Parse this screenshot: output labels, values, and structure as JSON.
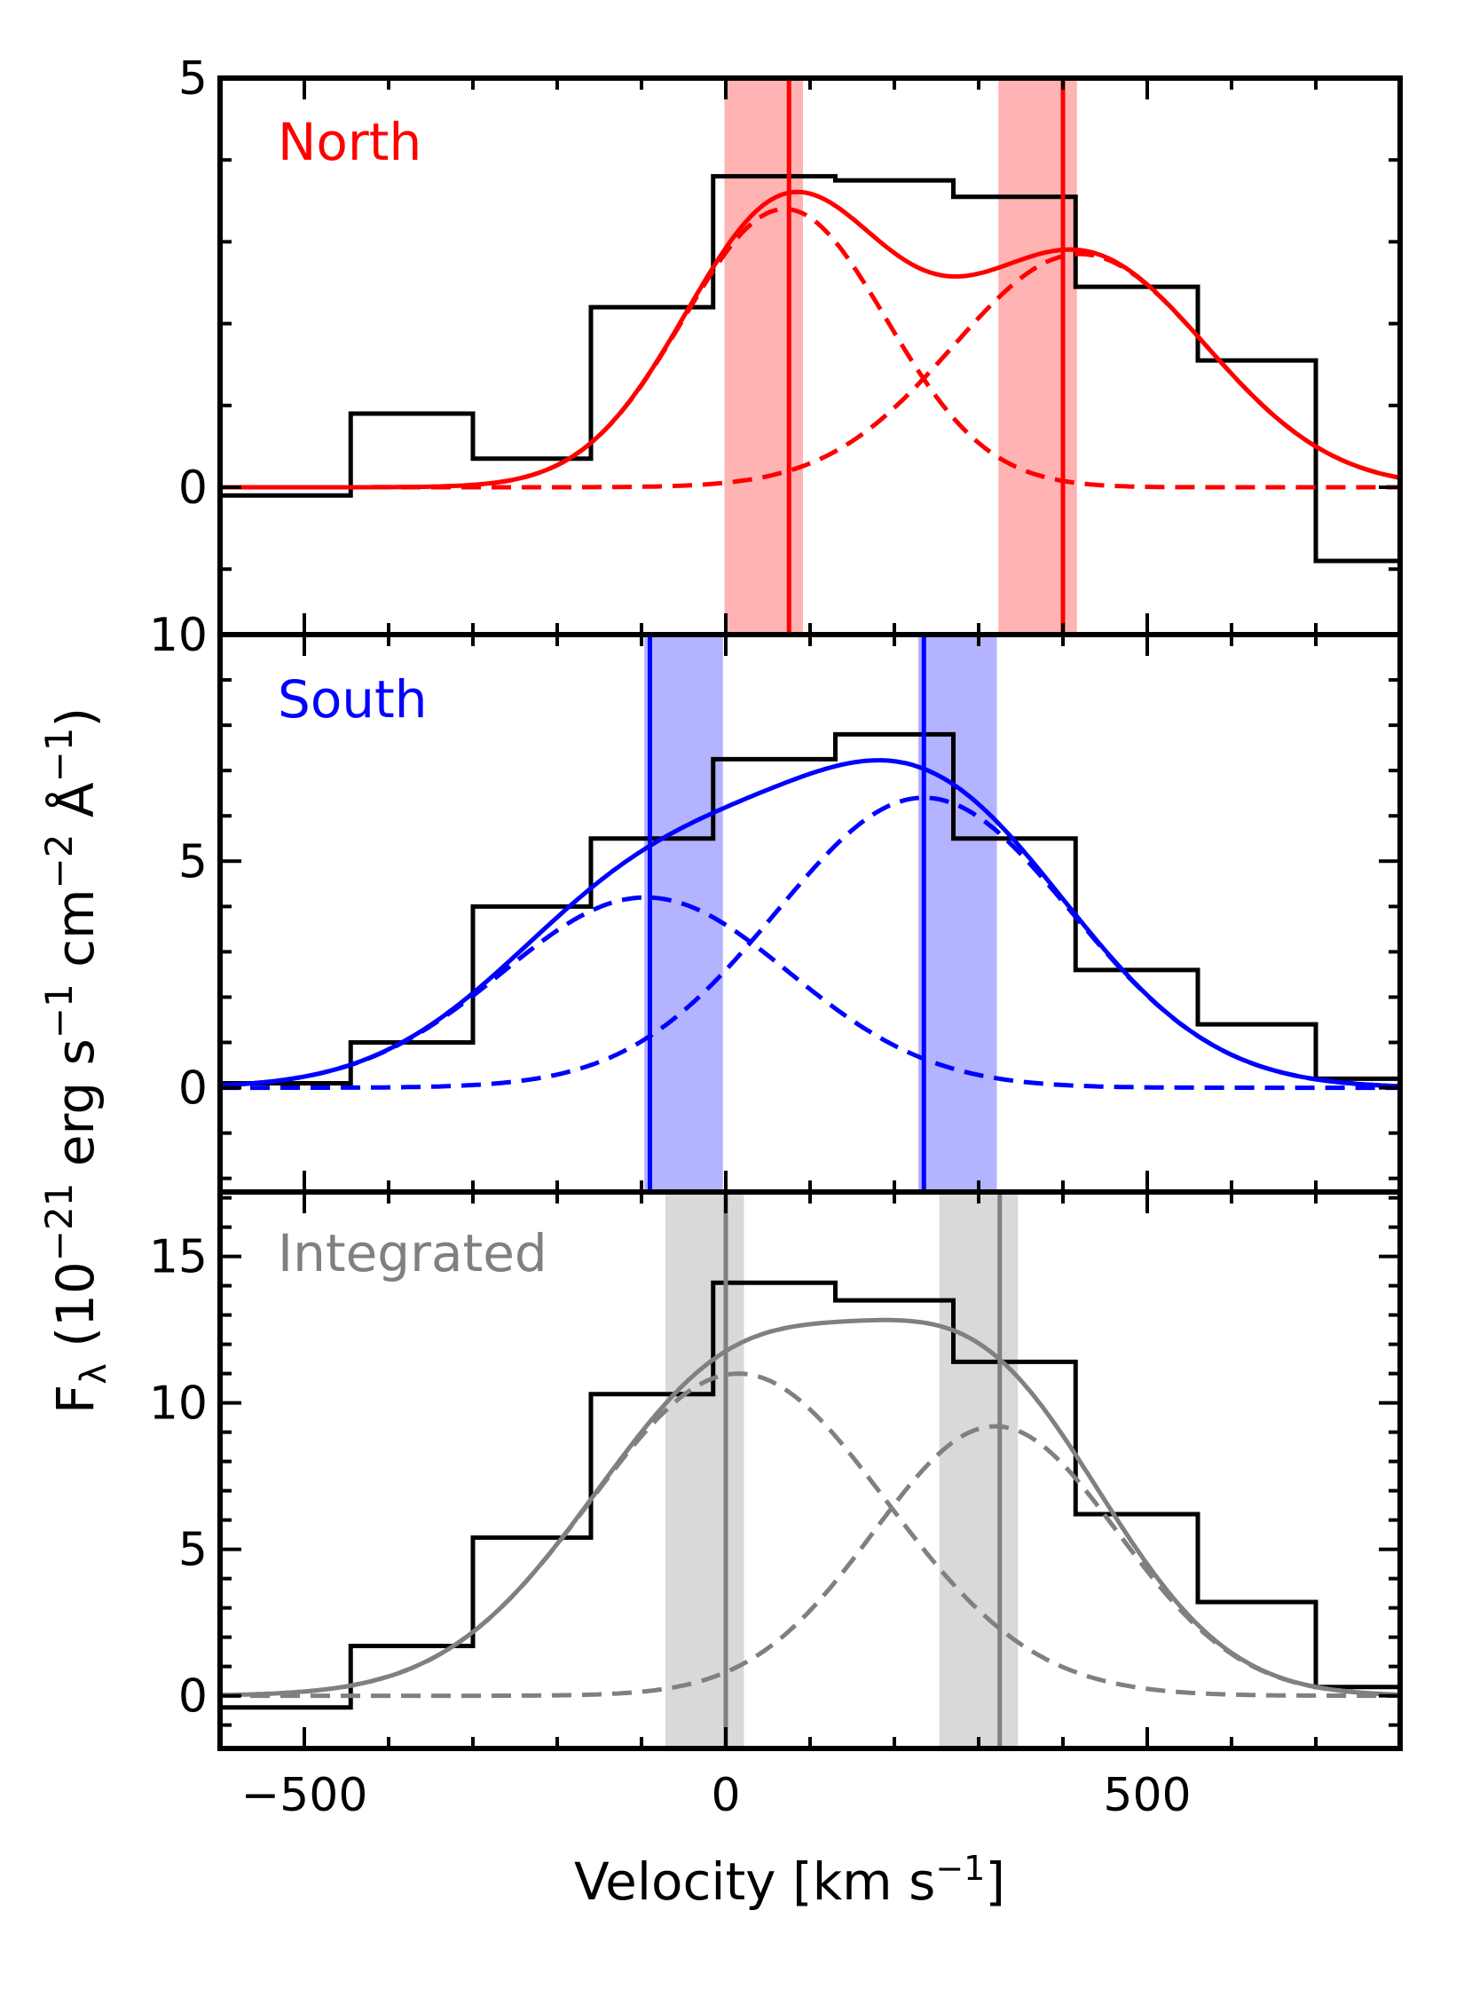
{
  "chart_data": {
    "type": "line",
    "title": "",
    "xlabel": {
      "main": "Velocity [km s",
      "sup": "−1",
      "close": "]"
    },
    "ylabel": {
      "prefix": "F",
      "sub": "λ",
      "text": " (10",
      "exp": "−21",
      "units": " erg s",
      "e1": "−1",
      "cm": " cm",
      "e2": "−2",
      "ang": " Å",
      "e3": "−1",
      "close": ")"
    },
    "xlim": [
      -600,
      800
    ],
    "x_ticks": [
      -500,
      0,
      500
    ],
    "x_tick_labels": [
      "−500",
      "0",
      "500"
    ],
    "panels": [
      {
        "label": "North",
        "color": "#ff0000",
        "band_color": "#ffb3b3",
        "ylim": [
          -1.8,
          5
        ],
        "y_ticks": [
          0,
          5
        ],
        "y_tick_labels": [
          "0",
          "5"
        ],
        "histogram": {
          "edges": [
            -600,
            -445,
            -300,
            -160,
            -15,
            130,
            270,
            415,
            560,
            700,
            800
          ],
          "values": [
            -0.1,
            0.9,
            0.35,
            2.2,
            3.8,
            3.75,
            3.55,
            2.45,
            1.55,
            -0.9
          ]
        },
        "components": [
          {
            "center": 70,
            "amplitude": 3.4,
            "sigma": 120
          },
          {
            "center": 420,
            "amplitude": 2.85,
            "sigma": 150
          }
        ],
        "vlines": [
          {
            "center": 75,
            "band": [
              0,
              90
            ]
          },
          {
            "center": 400,
            "band": [
              325,
              415
            ]
          }
        ]
      },
      {
        "label": "South",
        "color": "#0000ff",
        "band_color": "#b3b3ff",
        "ylim": [
          -2.3,
          10
        ],
        "y_ticks": [
          0,
          5,
          10
        ],
        "y_tick_labels": [
          "0",
          "5",
          "10"
        ],
        "histogram": {
          "edges": [
            -600,
            -445,
            -300,
            -160,
            -15,
            130,
            270,
            415,
            560,
            700,
            800
          ],
          "values": [
            0.1,
            1.0,
            4.0,
            5.5,
            7.25,
            7.8,
            5.5,
            2.6,
            1.4,
            0.2
          ]
        },
        "components": [
          {
            "center": -95,
            "amplitude": 4.2,
            "sigma": 170
          },
          {
            "center": 235,
            "amplitude": 6.4,
            "sigma": 175
          }
        ],
        "vlines": [
          {
            "center": -90,
            "band": [
              -95,
              -5
            ]
          },
          {
            "center": 235,
            "band": [
              230,
              320
            ]
          }
        ]
      },
      {
        "label": "Integrated",
        "color": "#808080",
        "band_color": "#d9d9d9",
        "ylim": [
          -1.8,
          17.2
        ],
        "y_ticks": [
          0,
          5,
          10,
          15
        ],
        "y_tick_labels": [
          "0",
          "5",
          "10",
          "15"
        ],
        "histogram": {
          "edges": [
            -600,
            -445,
            -300,
            -160,
            -15,
            130,
            270,
            415,
            560,
            700,
            800
          ],
          "values": [
            -0.4,
            1.7,
            5.4,
            10.3,
            14.1,
            13.5,
            11.4,
            6.2,
            3.2,
            0.3
          ]
        },
        "components": [
          {
            "center": 15,
            "amplitude": 11.0,
            "sigma": 175
          },
          {
            "center": 320,
            "amplitude": 9.2,
            "sigma": 145
          }
        ],
        "vlines": [
          {
            "center": 0,
            "band": [
              -70,
              20
            ]
          },
          {
            "center": 325,
            "band": [
              255,
              345
            ]
          }
        ]
      }
    ]
  }
}
